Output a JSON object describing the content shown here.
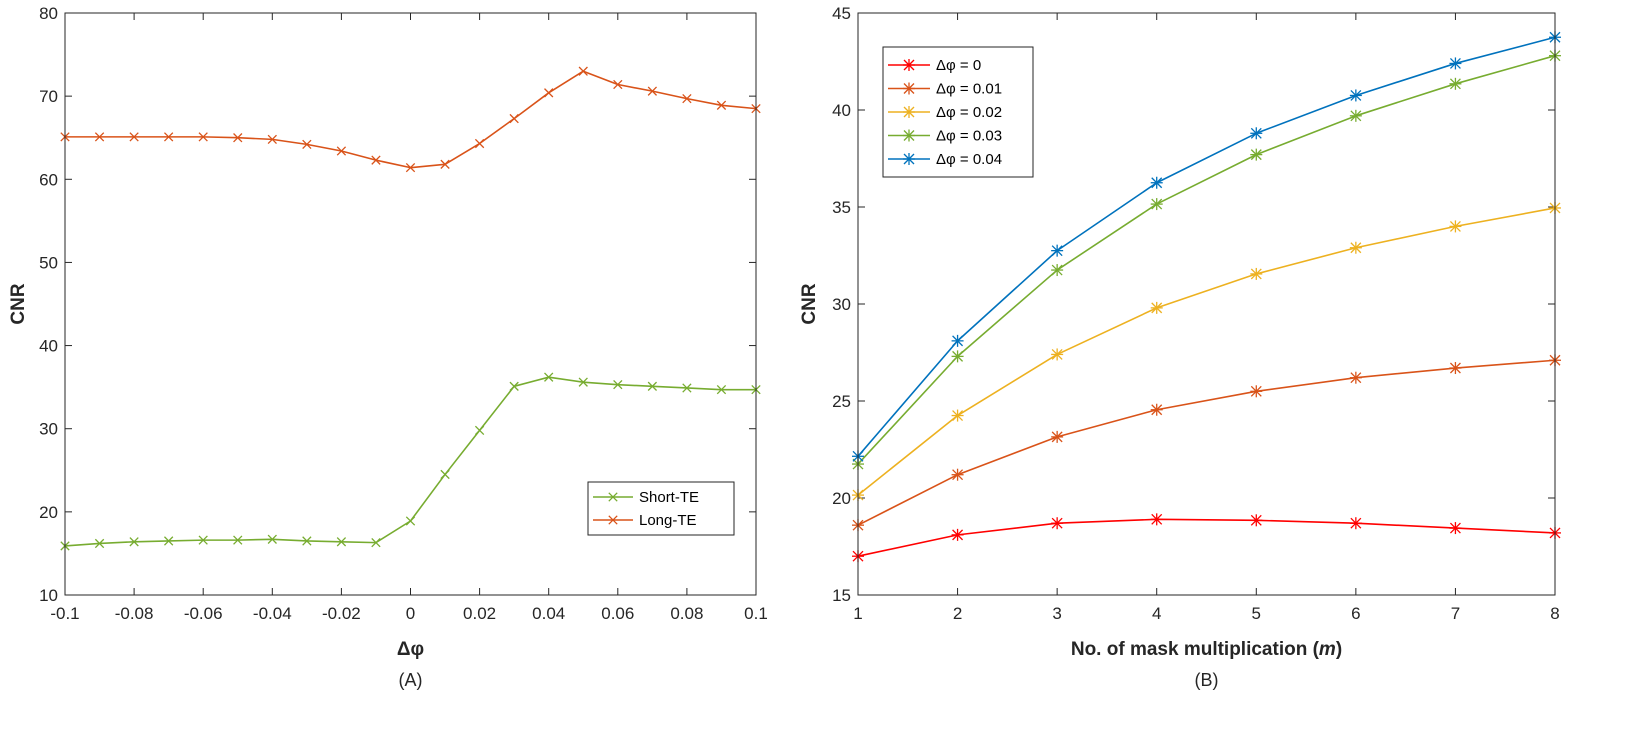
{
  "chart_data": [
    {
      "type": "line",
      "panel_label": "(A)",
      "xlabel": "Δφ",
      "ylabel": "CNR",
      "xlim": [
        -0.1,
        0.1
      ],
      "ylim": [
        10,
        80
      ],
      "x": [
        -0.1,
        -0.09,
        -0.08,
        -0.07,
        -0.06,
        -0.05,
        -0.04,
        -0.03,
        -0.02,
        -0.01,
        0,
        0.01,
        0.02,
        0.03,
        0.04,
        0.05,
        0.06,
        0.07,
        0.08,
        0.09,
        0.1
      ],
      "x_ticks": [
        -0.1,
        -0.08,
        -0.06,
        -0.04,
        -0.02,
        0,
        0.02,
        0.04,
        0.06,
        0.08,
        0.1
      ],
      "x_tick_labels": [
        "-0.1",
        "-0.08",
        "-0.06",
        "-0.04",
        "-0.02",
        "0",
        "0.02",
        "0.04",
        "0.06",
        "0.08",
        "0.1"
      ],
      "y_ticks": [
        10,
        20,
        30,
        40,
        50,
        60,
        70,
        80
      ],
      "y_tick_labels": [
        "10",
        "20",
        "30",
        "40",
        "50",
        "60",
        "70",
        "80"
      ],
      "legend_position": "bottom-right",
      "marker": "x",
      "series": [
        {
          "name": "Short-TE",
          "color": "#77AC30",
          "values": [
            15.9,
            16.2,
            16.4,
            16.5,
            16.6,
            16.6,
            16.7,
            16.5,
            16.4,
            16.3,
            18.9,
            24.5,
            29.8,
            35.1,
            36.2,
            35.6,
            35.3,
            35.1,
            34.9,
            34.7,
            34.7
          ]
        },
        {
          "name": "Long-TE",
          "color": "#D95319",
          "values": [
            65.1,
            65.1,
            65.1,
            65.1,
            65.1,
            65.0,
            64.8,
            64.2,
            63.4,
            62.3,
            61.4,
            61.8,
            64.3,
            67.3,
            70.4,
            73.0,
            71.4,
            70.6,
            69.7,
            68.9,
            68.5
          ]
        }
      ]
    },
    {
      "type": "line",
      "panel_label": "(B)",
      "xlabel": "No. of mask multiplication (",
      "xlabel_var": "m",
      "xlabel_end": ")",
      "ylabel": "CNR",
      "xlim": [
        1,
        8
      ],
      "ylim": [
        15,
        45
      ],
      "x": [
        1,
        2,
        3,
        4,
        5,
        6,
        7,
        8
      ],
      "x_ticks": [
        1,
        2,
        3,
        4,
        5,
        6,
        7,
        8
      ],
      "x_tick_labels": [
        "1",
        "2",
        "3",
        "4",
        "5",
        "6",
        "7",
        "8"
      ],
      "y_ticks": [
        15,
        20,
        25,
        30,
        35,
        40,
        45
      ],
      "y_tick_labels": [
        "15",
        "20",
        "25",
        "30",
        "35",
        "40",
        "45"
      ],
      "legend_position": "top-left",
      "marker": "asterisk",
      "series": [
        {
          "name": "Δφ = 0",
          "color": "#FF0000",
          "values": [
            17.0,
            18.1,
            18.7,
            18.9,
            18.85,
            18.7,
            18.45,
            18.2
          ]
        },
        {
          "name": "Δφ = 0.01",
          "color": "#D95319",
          "values": [
            18.6,
            21.2,
            23.15,
            24.55,
            25.5,
            26.2,
            26.7,
            27.1
          ]
        },
        {
          "name": "Δφ = 0.02",
          "color": "#EDB120",
          "values": [
            20.15,
            24.25,
            27.4,
            29.8,
            31.55,
            32.9,
            34.0,
            34.95
          ]
        },
        {
          "name": "Δφ = 0.03",
          "color": "#77AC30",
          "values": [
            21.75,
            27.3,
            31.75,
            35.15,
            37.7,
            39.7,
            41.35,
            42.8
          ]
        },
        {
          "name": "Δφ = 0.04",
          "color": "#0072BD",
          "values": [
            22.15,
            28.1,
            32.75,
            36.25,
            38.8,
            40.75,
            42.4,
            43.75
          ]
        }
      ]
    }
  ]
}
